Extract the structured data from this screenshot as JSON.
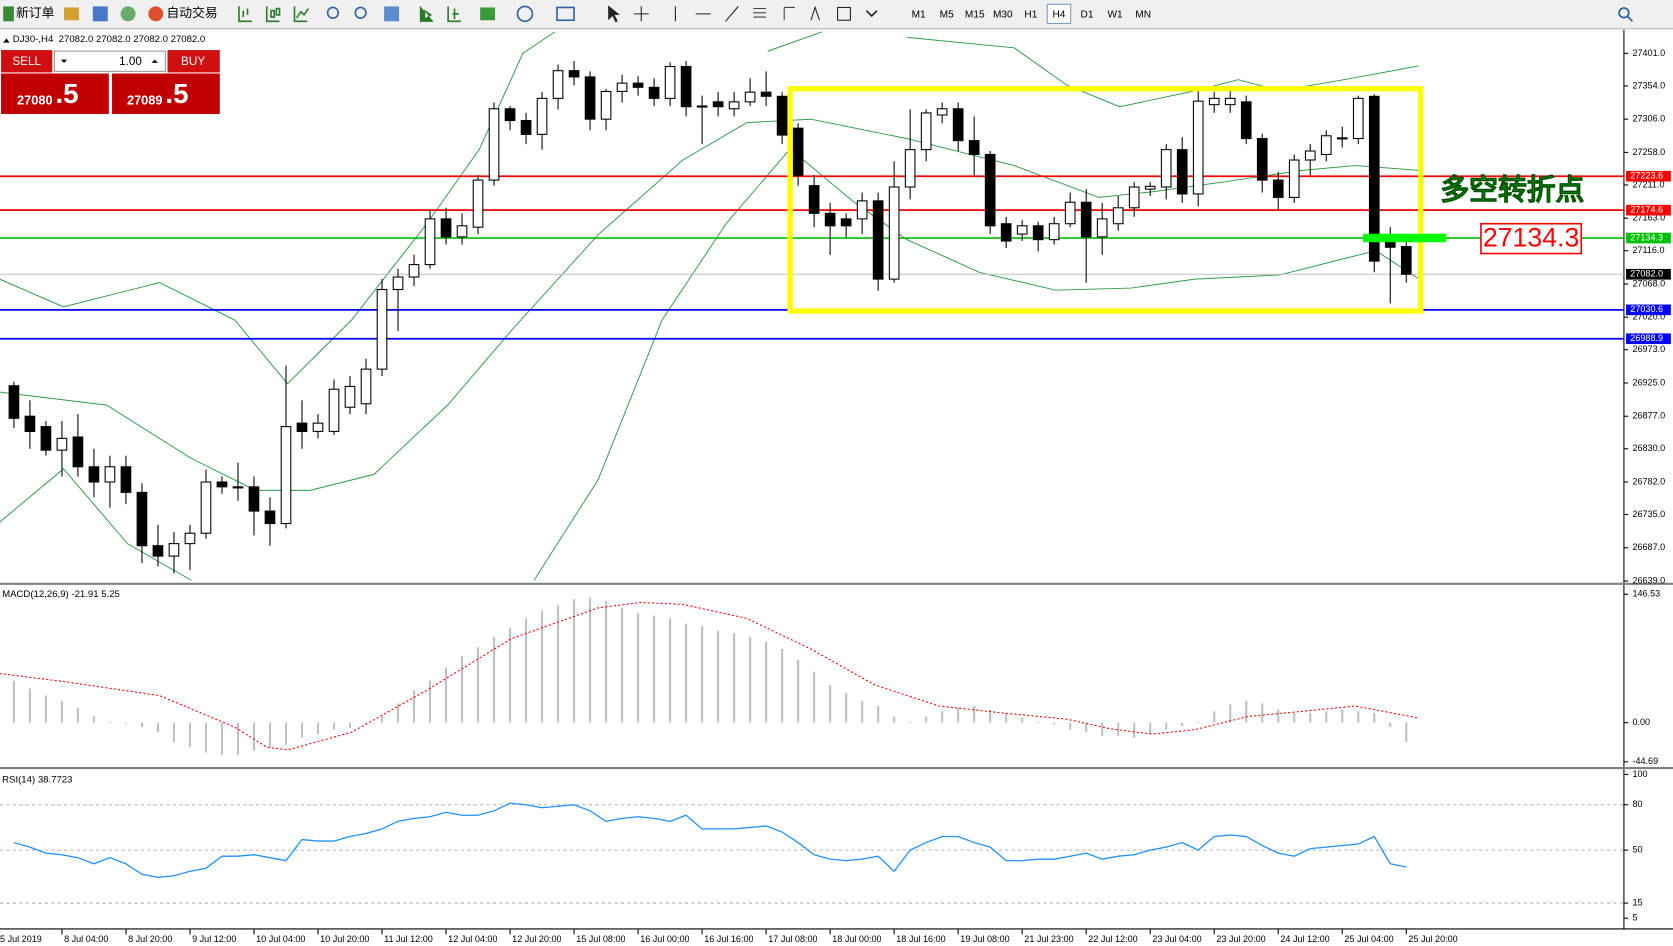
{
  "toolbar": {
    "new_order": "新订单",
    "auto_trading": "自动交易",
    "timeframes": [
      "M1",
      "M5",
      "M15",
      "M30",
      "H1",
      "H4",
      "D1",
      "W1",
      "MN"
    ],
    "active_timeframe": "H4"
  },
  "trade_panel": {
    "sell": "SELL",
    "buy": "BUY",
    "lots": "1.00",
    "sell_price": "27080",
    "sell_pips": ".5",
    "buy_price": "27089",
    "buy_pips": ".5"
  },
  "chart_data": [
    {
      "type": "candlestick",
      "title": "DJ30-,H4",
      "ohlc_label": "27082.0 27082.0 27082.0 27082.0",
      "open": [
        26921,
        26877,
        26862,
        26828,
        26847,
        26804,
        26782,
        26804,
        26767,
        26690,
        26675,
        26693,
        26708,
        26782,
        26775,
        26775,
        26740,
        26722,
        26867,
        26855,
        26855,
        26890,
        26895,
        26945,
        27060,
        27078,
        27096,
        27162,
        27136,
        27150,
        27218,
        27321,
        27304,
        27284,
        27336,
        27376,
        27367,
        27306,
        27346,
        27358,
        27352,
        27336,
        27382,
        27324,
        27331,
        27321,
        27331,
        27345,
        27339,
        27293,
        27210,
        27170,
        27162,
        27162,
        27188,
        27075,
        27208,
        27262,
        27312,
        27321,
        27275,
        27255,
        27155,
        27140,
        27152,
        27132,
        27155,
        27186,
        27136,
        27155,
        27178,
        27205,
        27208,
        27262,
        27198,
        27327,
        27327,
        27331,
        27278,
        27218,
        27193,
        27247,
        27255,
        27278,
        27278,
        27339,
        27136,
        27122
      ],
      "high": [
        26927,
        26900,
        26870,
        26870,
        26880,
        26830,
        26820,
        26820,
        26780,
        26720,
        26710,
        26720,
        26800,
        26790,
        26810,
        26790,
        26760,
        26950,
        26900,
        26880,
        26930,
        26935,
        26960,
        27075,
        27090,
        27110,
        27175,
        27178,
        27170,
        27225,
        27330,
        27325,
        27315,
        27345,
        27385,
        27390,
        27375,
        27350,
        27370,
        27368,
        27365,
        27388,
        27390,
        27340,
        27345,
        27345,
        27365,
        27375,
        27345,
        27300,
        27225,
        27185,
        27170,
        27200,
        27200,
        27245,
        27320,
        27320,
        27330,
        27330,
        27310,
        27260,
        27165,
        27160,
        27158,
        27165,
        27200,
        27205,
        27185,
        27195,
        27215,
        27215,
        27270,
        27280,
        27352,
        27345,
        27352,
        27340,
        27285,
        27230,
        27255,
        27270,
        27290,
        27295,
        27340,
        27342,
        27150,
        27140
      ],
      "low": [
        26860,
        26830,
        26820,
        26790,
        26790,
        26760,
        26745,
        26750,
        26665,
        26660,
        26650,
        26655,
        26700,
        26765,
        26755,
        26705,
        26690,
        26715,
        26830,
        26845,
        26850,
        26880,
        26880,
        26935,
        27000,
        27065,
        27090,
        27125,
        27125,
        27140,
        27210,
        27290,
        27270,
        27262,
        27320,
        27355,
        27290,
        27290,
        27330,
        27340,
        27325,
        27325,
        27310,
        27270,
        27310,
        27310,
        27325,
        27325,
        27270,
        27210,
        27150,
        27110,
        27135,
        27140,
        27058,
        27070,
        27190,
        27245,
        27300,
        27260,
        27225,
        27140,
        27120,
        27130,
        27115,
        27125,
        27150,
        27070,
        27110,
        27145,
        27165,
        27195,
        27190,
        27185,
        27180,
        27315,
        27315,
        27270,
        27200,
        27175,
        27185,
        27225,
        27245,
        27265,
        27270,
        27085,
        27040,
        27070
      ],
      "close": [
        26874,
        26855,
        26828,
        26845,
        26804,
        26782,
        26804,
        26767,
        26690,
        26675,
        26693,
        26708,
        26782,
        26775,
        26775,
        26740,
        26722,
        26862,
        26855,
        26867,
        26916,
        26920,
        26945,
        27060,
        27078,
        27096,
        27162,
        27136,
        27152,
        27218,
        27321,
        27304,
        27284,
        27336,
        27376,
        27367,
        27306,
        27346,
        27358,
        27352,
        27336,
        27382,
        27324,
        27325,
        27324,
        27331,
        27345,
        27339,
        27283,
        27225,
        27170,
        27152,
        27152,
        27188,
        27075,
        27208,
        27262,
        27315,
        27321,
        27275,
        27255,
        27152,
        27130,
        27152,
        27132,
        27155,
        27186,
        27136,
        27162,
        27178,
        27208,
        27209,
        27262,
        27198,
        27332,
        27336,
        27336,
        27278,
        27218,
        27193,
        27247,
        27260,
        27282,
        27279,
        27336,
        27101,
        27121,
        27082
      ],
      "bands": [
        {
          "color": "#2e9b48",
          "x": [
            -0.9,
            3.1,
            9.1,
            13.8,
            17.1,
            21.1,
            25.8,
            29.1,
            31.8,
            33.8,
            40,
            47.1,
            50.5,
            53,
            55.8,
            62.5,
            65.8,
            69.1,
            73.8,
            76.5,
            79.1,
            83.1,
            87.8
          ],
          "values": [
            27075,
            27035,
            27070,
            27016,
            26924,
            27016,
            27155,
            27263,
            27401,
            27432,
            null,
            27404,
            27432,
            null,
            27424,
            27409,
            27355,
            27324,
            27347,
            27363,
            27347,
            27363,
            27383
          ]
        },
        {
          "color": "#2e9b48",
          "x": [
            -0.9,
            5.8,
            11.1,
            15.1,
            18.5,
            22.5,
            27.1,
            31.1,
            36.5,
            41.8,
            45.8,
            49.8,
            55.8,
            62.5,
            67.8,
            71.1,
            75.8,
            80.5,
            83.8,
            87.8
          ],
          "values": [
            26912,
            26893,
            26816,
            26770,
            26770,
            26793,
            26893,
            27001,
            27139,
            27247,
            27301,
            27306,
            27278,
            27239,
            27193,
            27201,
            27216,
            27232,
            27239,
            27232
          ]
        },
        {
          "color": "#2e9b48",
          "x": [
            -0.9,
            3.1,
            7.1,
            11.1,
            21,
            32.5,
            36.5,
            40.5,
            44.5,
            48.5,
            52.5,
            55.8,
            60.3,
            65.1,
            69.8,
            73.8,
            79.1,
            82.5,
            85.1,
            87.8
          ],
          "values": [
            26724,
            26801,
            26693,
            26640,
            null,
            26640,
            26785,
            27016,
            27155,
            27263,
            27186,
            27132,
            27085,
            27059,
            27062,
            27075,
            27081,
            27101,
            27116,
            27075
          ]
        }
      ],
      "levels": [
        {
          "value": 27223.6,
          "color": "#ff0000"
        },
        {
          "value": 27174.6,
          "color": "#ff0000"
        },
        {
          "value": 27134.3,
          "color": "#00c000"
        },
        {
          "value": 27030.6,
          "color": "#0000ff"
        },
        {
          "value": 26988.9,
          "color": "#0000ff"
        }
      ],
      "last_price": {
        "value": 27082,
        "label": "27082.0"
      },
      "box": {
        "from": 48.5,
        "to": 87.9,
        "low": 27029,
        "high": 27350,
        "color": "#ffff00"
      },
      "annotation": "多空转折点",
      "xlim": [
        -0.87,
        100.6
      ],
      "ylim": [
        26635,
        27435
      ],
      "yticks": [
        {
          "value": 27401,
          "label": "27401.0"
        },
        {
          "value": 27354,
          "label": "27354.0"
        },
        {
          "value": 27306,
          "label": "27306.0"
        },
        {
          "value": 27258,
          "label": "27258.0"
        },
        {
          "value": 27211,
          "label": "27211.0"
        },
        {
          "value": 27163,
          "label": "27163.0"
        },
        {
          "value": 27116,
          "label": "27116.0"
        },
        {
          "value": 27068,
          "label": "27068.0"
        },
        {
          "value": 27020,
          "label": "27020.0"
        },
        {
          "value": 26973,
          "label": "26973.0"
        },
        {
          "value": 26925,
          "label": "26925.0"
        },
        {
          "value": 26877,
          "label": "26877.0"
        },
        {
          "value": 26830,
          "label": "26830.0"
        },
        {
          "value": 26782,
          "label": "26782.0"
        },
        {
          "value": 26735,
          "label": "26735.0"
        },
        {
          "value": 26687,
          "label": "26687.0"
        },
        {
          "value": 26639,
          "label": "26639.0"
        }
      ],
      "xticks": [
        {
          "value": -1,
          "label": "5 Jul 2019"
        },
        {
          "value": 3,
          "label": "8 Jul 04:00"
        },
        {
          "value": 7,
          "label": "8 Jul 20:00"
        },
        {
          "value": 11,
          "label": "9 Jul 12:00"
        },
        {
          "value": 15,
          "label": "10 Jul 04:00"
        },
        {
          "value": 19,
          "label": "10 Jul 20:00"
        },
        {
          "value": 23,
          "label": "11 Jul 12:00"
        },
        {
          "value": 27,
          "label": "12 Jul 04:00"
        },
        {
          "value": 31,
          "label": "12 Jul 20:00"
        },
        {
          "value": 35,
          "label": "15 Jul 08:00"
        },
        {
          "value": 39,
          "label": "16 Jul 00:00"
        },
        {
          "value": 43,
          "label": "16 Jul 16:00"
        },
        {
          "value": 47,
          "label": "17 Jul 08:00"
        },
        {
          "value": 51,
          "label": "18 Jul 00:00"
        },
        {
          "value": 55,
          "label": "18 Jul 16:00"
        },
        {
          "value": 59,
          "label": "19 Jul 08:00"
        },
        {
          "value": 63,
          "label": "21 Jul 23:00"
        },
        {
          "value": 67,
          "label": "22 Jul 12:00"
        },
        {
          "value": 71,
          "label": "23 Jul 04:00"
        },
        {
          "value": 75,
          "label": "23 Jul 20:00"
        },
        {
          "value": 79,
          "label": "24 Jul 12:00"
        },
        {
          "value": 83,
          "label": "25 Jul 04:00"
        },
        {
          "value": 87,
          "label": "25 Jul 20:00"
        }
      ]
    },
    {
      "type": "macd",
      "title": "MACD(12,26,9) -21.91 5.25",
      "ylim": [
        -50.6,
        154.8
      ],
      "yticks": [
        146.53,
        {
          "value": 0,
          "label": "0.00"
        },
        -44.69
      ],
      "values": [
        48,
        39,
        31,
        25,
        17,
        7,
        1,
        -1,
        -5,
        -11,
        -22,
        -28,
        -34,
        -37,
        -37,
        -32,
        -28,
        -25,
        -17,
        -13,
        -8,
        -6,
        -2,
        7,
        22,
        37,
        48,
        63,
        76,
        86,
        98,
        108,
        119,
        128,
        134,
        141,
        143,
        139,
        131,
        125,
        122,
        119,
        113,
        110,
        105,
        102,
        98,
        92,
        84,
        72,
        58,
        43,
        34,
        25,
        19,
        7,
        1,
        7,
        13,
        17,
        19,
        15,
        11,
        6,
        1,
        -2,
        -8,
        -11,
        -15,
        -15,
        -17,
        -13,
        -8,
        -4,
        1,
        13,
        21,
        25,
        22,
        15,
        11,
        11,
        13,
        15,
        13,
        11,
        -5,
        -21.91
      ],
      "color": "#c0c0c0",
      "signal": {
        "color": "#ff0000",
        "x": [
          -0.9,
          3.1,
          9.1,
          13.8,
          15.8,
          17.1,
          21.1,
          25.8,
          31.1,
          36.5,
          39.1,
          41.8,
          45.8,
          49.8,
          53.8,
          57.8,
          61.8,
          65.8,
          68.5,
          71.1,
          73.8,
          77.1,
          80.5,
          83.8,
          87.8
        ],
        "values": [
          56,
          47,
          31,
          -5,
          -28,
          -31,
          -11,
          37,
          96,
          131,
          137,
          135,
          119,
          84,
          43,
          19,
          11,
          4,
          -7,
          -13,
          -8,
          7,
          13,
          19,
          5.25
        ]
      }
    },
    {
      "type": "line",
      "title": "RSI(14) 38.7723",
      "ylim": [
        -2.1,
        102.8
      ],
      "yticks": [
        100,
        80,
        50,
        15,
        5
      ],
      "levels": [
        80,
        50,
        15
      ],
      "color": "#1e90ff",
      "values": [
        55,
        52,
        48,
        47,
        45,
        41,
        45,
        41,
        34,
        32,
        33,
        36,
        38,
        46,
        46,
        47,
        45,
        43,
        57,
        56,
        56,
        59,
        61,
        64,
        69,
        71,
        72,
        75,
        73,
        73,
        76,
        81,
        80,
        78,
        79,
        80,
        76,
        69,
        71,
        72,
        71,
        69,
        73,
        64,
        64,
        64,
        65,
        66,
        62,
        55,
        47,
        44,
        43,
        44,
        46,
        36,
        50,
        55,
        59,
        59,
        55,
        52,
        43,
        43,
        44,
        44,
        46,
        48,
        44,
        46,
        47,
        50,
        52,
        55,
        50,
        59,
        60,
        59,
        53,
        48,
        46,
        51,
        52,
        53,
        54,
        59,
        41,
        38.7723
      ]
    }
  ]
}
